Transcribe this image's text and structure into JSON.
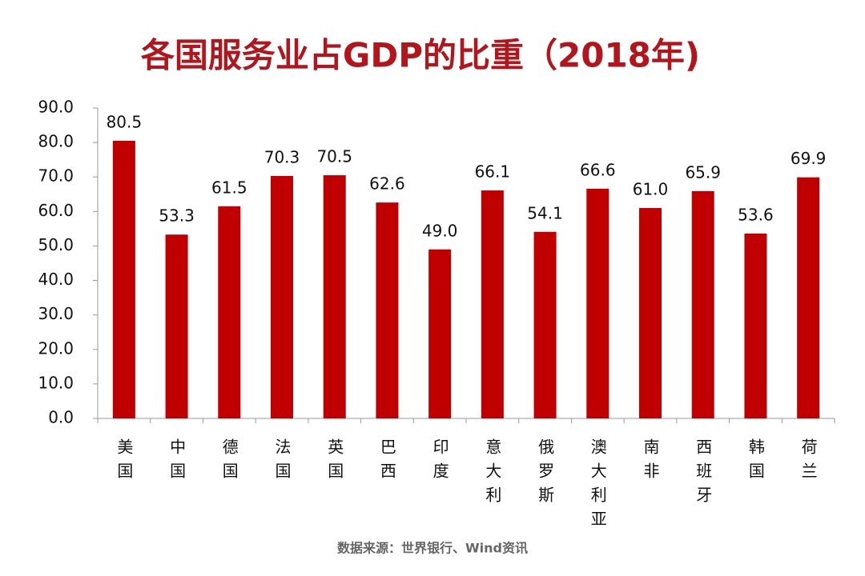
{
  "chart_data": {
    "type": "bar",
    "title": "各国服务业占GDP的比重（2018年)",
    "categories": [
      "美国",
      "中国",
      "德国",
      "法国",
      "英国",
      "巴西",
      "印度",
      "意大利",
      "俄罗斯",
      "澳大利亚",
      "南非",
      "西班牙",
      "韩国",
      "荷兰"
    ],
    "values": [
      80.5,
      53.3,
      61.5,
      70.3,
      70.5,
      62.6,
      49.0,
      66.1,
      54.1,
      66.6,
      61.0,
      65.9,
      53.6,
      69.9
    ],
    "value_labels": [
      "80.5",
      "53.3",
      "61.5",
      "70.3",
      "70.5",
      "62.6",
      "49.0",
      "66.1",
      "54.1",
      "66.6",
      "61.0",
      "65.9",
      "53.6",
      "69.9"
    ],
    "color": "#c00000",
    "ylim": [
      0,
      90
    ],
    "yticks": [
      {
        "value": 0,
        "label": "0.0"
      },
      {
        "value": 10,
        "label": "10.0"
      },
      {
        "value": 20,
        "label": "20.0"
      },
      {
        "value": 30,
        "label": "30.0"
      },
      {
        "value": 40,
        "label": "40.0"
      },
      {
        "value": 50,
        "label": "50.0"
      },
      {
        "value": 60,
        "label": "60.0"
      },
      {
        "value": 70,
        "label": "70.0"
      },
      {
        "value": 80,
        "label": "80.0"
      },
      {
        "value": 90,
        "label": "90.0"
      }
    ],
    "grid": false,
    "source": "数据来源：世界银行、Wind资讯"
  }
}
